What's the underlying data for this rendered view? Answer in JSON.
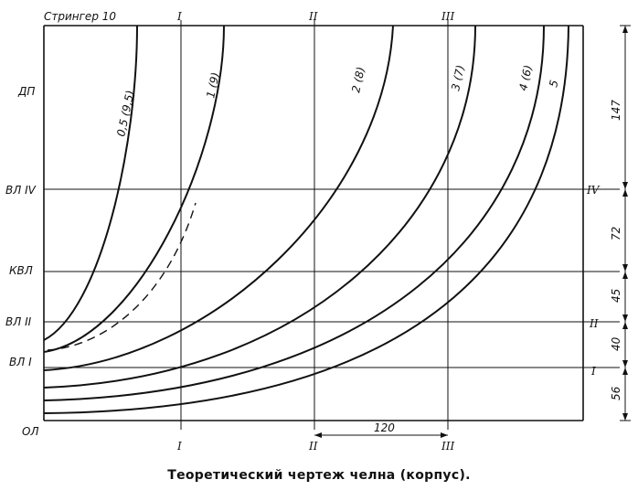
{
  "header": {
    "stringer": "Стрингер 10"
  },
  "stations": [
    "I",
    "II",
    "III"
  ],
  "left_labels": {
    "dp": "ДП",
    "vl4": "ВЛ IV",
    "kvl": "КВЛ",
    "vl2": "ВЛ II",
    "vl1": "ВЛ I",
    "ol": "ОЛ"
  },
  "right_labels": {
    "iv": "IV",
    "ii": "II",
    "i": "I"
  },
  "curve_labels": {
    "c05": "0,5 (9,5)",
    "c1": "1 (9)",
    "c2": "2 (8)",
    "c3": "3 (7)",
    "c4": "4 (6)",
    "c5": "5"
  },
  "dimensions": {
    "d147": "147",
    "d72": "72",
    "d45": "45",
    "d40": "40",
    "d56": "56",
    "d120": "120"
  },
  "caption": "Теоретический чертеж челна (корпус)."
}
